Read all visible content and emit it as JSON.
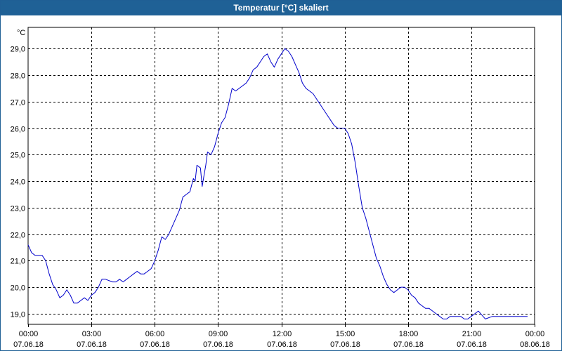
{
  "window": {
    "title": "Temperatur [°C] skaliert"
  },
  "chart_data": {
    "type": "line",
    "title": "Temperatur [°C] skaliert",
    "ylabel": "°C",
    "xlabel": "",
    "xlim": [
      0,
      1440
    ],
    "ylim": [
      18.6,
      29.8
    ],
    "grid": true,
    "line_color": "#0000cc",
    "y_ticks": [
      {
        "value": 19,
        "label": "19,0"
      },
      {
        "value": 20,
        "label": "20,0"
      },
      {
        "value": 21,
        "label": "21,0"
      },
      {
        "value": 22,
        "label": "22,0"
      },
      {
        "value": 23,
        "label": "23,0"
      },
      {
        "value": 24,
        "label": "24,0"
      },
      {
        "value": 25,
        "label": "25,0"
      },
      {
        "value": 26,
        "label": "26,0"
      },
      {
        "value": 27,
        "label": "27,0"
      },
      {
        "value": 28,
        "label": "28,0"
      },
      {
        "value": 29,
        "label": "29,0"
      }
    ],
    "x_ticks": [
      {
        "value": 0,
        "time": "00:00",
        "date": "07.06.18"
      },
      {
        "value": 180,
        "time": "03:00",
        "date": "07.06.18"
      },
      {
        "value": 360,
        "time": "06:00",
        "date": "07.06.18"
      },
      {
        "value": 540,
        "time": "09:00",
        "date": "07.06.18"
      },
      {
        "value": 720,
        "time": "12:00",
        "date": "07.06.18"
      },
      {
        "value": 900,
        "time": "15:00",
        "date": "07.06.18"
      },
      {
        "value": 1080,
        "time": "18:00",
        "date": "07.06.18"
      },
      {
        "value": 1260,
        "time": "21:00",
        "date": "07.06.18"
      },
      {
        "value": 1440,
        "time": "00:00",
        "date": "08.06.18"
      }
    ],
    "series": [
      {
        "points": [
          [
            0,
            21.6
          ],
          [
            10,
            21.3
          ],
          [
            20,
            21.2
          ],
          [
            40,
            21.2
          ],
          [
            50,
            21.0
          ],
          [
            60,
            20.5
          ],
          [
            70,
            20.1
          ],
          [
            80,
            19.9
          ],
          [
            90,
            19.6
          ],
          [
            100,
            19.7
          ],
          [
            110,
            19.9
          ],
          [
            120,
            19.7
          ],
          [
            130,
            19.4
          ],
          [
            140,
            19.4
          ],
          [
            150,
            19.5
          ],
          [
            160,
            19.6
          ],
          [
            170,
            19.5
          ],
          [
            180,
            19.7
          ],
          [
            190,
            19.8
          ],
          [
            200,
            20.0
          ],
          [
            210,
            20.3
          ],
          [
            220,
            20.3
          ],
          [
            240,
            20.2
          ],
          [
            250,
            20.2
          ],
          [
            260,
            20.3
          ],
          [
            270,
            20.2
          ],
          [
            280,
            20.3
          ],
          [
            290,
            20.4
          ],
          [
            300,
            20.5
          ],
          [
            310,
            20.6
          ],
          [
            320,
            20.5
          ],
          [
            330,
            20.5
          ],
          [
            340,
            20.6
          ],
          [
            350,
            20.7
          ],
          [
            360,
            21.0
          ],
          [
            370,
            21.4
          ],
          [
            380,
            21.9
          ],
          [
            390,
            21.8
          ],
          [
            400,
            22.0
          ],
          [
            410,
            22.3
          ],
          [
            420,
            22.6
          ],
          [
            430,
            22.9
          ],
          [
            440,
            23.4
          ],
          [
            450,
            23.5
          ],
          [
            460,
            23.6
          ],
          [
            470,
            24.1
          ],
          [
            475,
            24.0
          ],
          [
            480,
            24.6
          ],
          [
            490,
            24.5
          ],
          [
            495,
            23.8
          ],
          [
            500,
            24.2
          ],
          [
            505,
            24.6
          ],
          [
            510,
            25.1
          ],
          [
            520,
            25.0
          ],
          [
            530,
            25.3
          ],
          [
            540,
            25.8
          ],
          [
            550,
            26.2
          ],
          [
            560,
            26.4
          ],
          [
            570,
            26.9
          ],
          [
            580,
            27.5
          ],
          [
            590,
            27.4
          ],
          [
            600,
            27.5
          ],
          [
            610,
            27.6
          ],
          [
            620,
            27.7
          ],
          [
            630,
            27.9
          ],
          [
            640,
            28.2
          ],
          [
            650,
            28.3
          ],
          [
            660,
            28.5
          ],
          [
            670,
            28.7
          ],
          [
            680,
            28.8
          ],
          [
            690,
            28.5
          ],
          [
            700,
            28.3
          ],
          [
            710,
            28.6
          ],
          [
            720,
            28.8
          ],
          [
            730,
            29.0
          ],
          [
            740,
            28.9
          ],
          [
            750,
            28.7
          ],
          [
            760,
            28.4
          ],
          [
            770,
            28.1
          ],
          [
            780,
            27.7
          ],
          [
            790,
            27.5
          ],
          [
            800,
            27.4
          ],
          [
            810,
            27.3
          ],
          [
            820,
            27.1
          ],
          [
            830,
            26.9
          ],
          [
            840,
            26.7
          ],
          [
            850,
            26.5
          ],
          [
            860,
            26.3
          ],
          [
            870,
            26.1
          ],
          [
            880,
            26.0
          ],
          [
            890,
            26.0
          ],
          [
            900,
            26.0
          ],
          [
            910,
            25.8
          ],
          [
            920,
            25.4
          ],
          [
            930,
            24.7
          ],
          [
            940,
            23.8
          ],
          [
            950,
            23.0
          ],
          [
            960,
            22.6
          ],
          [
            970,
            22.1
          ],
          [
            980,
            21.6
          ],
          [
            990,
            21.1
          ],
          [
            1000,
            20.8
          ],
          [
            1010,
            20.4
          ],
          [
            1020,
            20.1
          ],
          [
            1030,
            19.9
          ],
          [
            1040,
            19.8
          ],
          [
            1050,
            19.9
          ],
          [
            1060,
            20.0
          ],
          [
            1070,
            20.0
          ],
          [
            1080,
            19.9
          ],
          [
            1090,
            19.7
          ],
          [
            1100,
            19.6
          ],
          [
            1110,
            19.4
          ],
          [
            1120,
            19.3
          ],
          [
            1130,
            19.2
          ],
          [
            1140,
            19.2
          ],
          [
            1150,
            19.1
          ],
          [
            1160,
            19.0
          ],
          [
            1170,
            18.9
          ],
          [
            1180,
            18.8
          ],
          [
            1190,
            18.8
          ],
          [
            1200,
            18.9
          ],
          [
            1210,
            18.9
          ],
          [
            1220,
            18.9
          ],
          [
            1230,
            18.9
          ],
          [
            1240,
            18.8
          ],
          [
            1250,
            18.8
          ],
          [
            1260,
            18.9
          ],
          [
            1280,
            19.1
          ],
          [
            1300,
            18.8
          ],
          [
            1320,
            18.9
          ],
          [
            1350,
            18.9
          ],
          [
            1380,
            18.9
          ],
          [
            1400,
            18.9
          ],
          [
            1420,
            18.9
          ]
        ]
      }
    ]
  }
}
